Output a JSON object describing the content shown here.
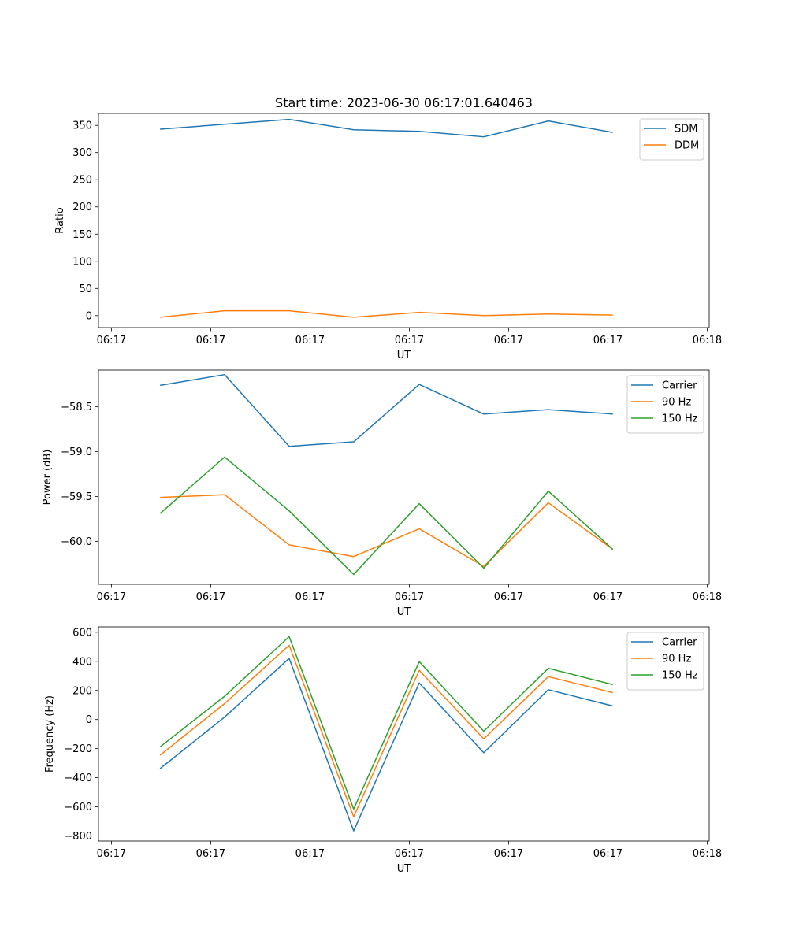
{
  "figure_title": "Start time: 2023-06-30 06:17:01.640463",
  "colors": {
    "c0": "#1f77b4",
    "c1": "#ff7f0e",
    "c2": "#2ca02c"
  },
  "chart_data": [
    {
      "type": "line",
      "title": "Start time: 2023-06-30 06:17:01.640463",
      "xlabel": "UT",
      "ylabel": "Ratio",
      "x_tick_labels": [
        "06:17",
        "06:17",
        "06:17",
        "06:17",
        "06:17",
        "06:17",
        "06:18"
      ],
      "y_ticks": [
        0,
        50,
        100,
        150,
        200,
        250,
        300,
        350
      ],
      "ylim": [
        -22,
        372
      ],
      "x_range": [
        -0.13,
        6.02
      ],
      "legend_position": "upper right",
      "grid": false,
      "series": [
        {
          "name": "SDM",
          "color": "#1f77b4",
          "x": [
            0.49,
            1.14,
            1.79,
            2.44,
            3.1,
            3.75,
            4.4,
            5.05
          ],
          "y": [
            343,
            352,
            361,
            342,
            339,
            329,
            358,
            337
          ]
        },
        {
          "name": "DDM",
          "color": "#ff7f0e",
          "x": [
            0.49,
            1.14,
            1.79,
            2.44,
            3.1,
            3.75,
            4.4,
            5.05
          ],
          "y": [
            -3,
            9,
            9,
            -3,
            6,
            0,
            3,
            1
          ]
        }
      ]
    },
    {
      "type": "line",
      "title": "",
      "xlabel": "UT",
      "ylabel": "Power (dB)",
      "x_tick_labels": [
        "06:17",
        "06:17",
        "06:17",
        "06:17",
        "06:17",
        "06:17",
        "06:18"
      ],
      "y_ticks": [
        -60.0,
        -59.5,
        -59.0,
        -58.5
      ],
      "y_tick_labels": [
        "−60.0",
        "−59.5",
        "−59.0",
        "−58.5"
      ],
      "ylim": [
        -60.48,
        -58.09
      ],
      "x_range": [
        -0.13,
        6.02
      ],
      "legend_position": "upper right",
      "grid": false,
      "series": [
        {
          "name": "Carrier",
          "color": "#1f77b4",
          "x": [
            0.49,
            1.14,
            1.79,
            2.44,
            3.1,
            3.75,
            4.4,
            5.05
          ],
          "y": [
            -58.26,
            -58.14,
            -58.94,
            -58.89,
            -58.25,
            -58.58,
            -58.53,
            -58.58
          ]
        },
        {
          "name": "90 Hz",
          "color": "#ff7f0e",
          "x": [
            0.49,
            1.14,
            1.79,
            2.44,
            3.1,
            3.75,
            4.4,
            5.05
          ],
          "y": [
            -59.51,
            -59.48,
            -60.04,
            -60.17,
            -59.86,
            -60.28,
            -59.57,
            -60.09
          ]
        },
        {
          "name": "150 Hz",
          "color": "#2ca02c",
          "x": [
            0.49,
            1.14,
            1.79,
            2.44,
            3.1,
            3.75,
            4.4,
            5.05
          ],
          "y": [
            -59.69,
            -59.06,
            -59.66,
            -60.37,
            -59.58,
            -60.3,
            -59.44,
            -60.09
          ]
        }
      ]
    },
    {
      "type": "line",
      "title": "",
      "xlabel": "UT",
      "ylabel": "Frequency (Hz)",
      "x_tick_labels": [
        "06:17",
        "06:17",
        "06:17",
        "06:17",
        "06:17",
        "06:17",
        "06:18"
      ],
      "y_ticks": [
        -800,
        -600,
        -400,
        -200,
        0,
        200,
        400,
        600
      ],
      "y_tick_labels": [
        "−800",
        "−600",
        "−400",
        "−200",
        "0",
        "200",
        "400",
        "600"
      ],
      "ylim": [
        -835,
        637
      ],
      "x_range": [
        -0.13,
        6.02
      ],
      "legend_position": "upper right",
      "grid": false,
      "series": [
        {
          "name": "Carrier",
          "color": "#1f77b4",
          "x": [
            0.49,
            1.14,
            1.79,
            2.44,
            3.1,
            3.75,
            4.4,
            5.05
          ],
          "y": [
            -337,
            17,
            420,
            -765,
            251,
            -228,
            205,
            93
          ]
        },
        {
          "name": "90 Hz",
          "color": "#ff7f0e",
          "x": [
            0.49,
            1.14,
            1.79,
            2.44,
            3.1,
            3.75,
            4.4,
            5.05
          ],
          "y": [
            -245,
            110,
            510,
            -668,
            338,
            -133,
            295,
            185
          ]
        },
        {
          "name": "150 Hz",
          "color": "#2ca02c",
          "x": [
            0.49,
            1.14,
            1.79,
            2.44,
            3.1,
            3.75,
            4.4,
            5.05
          ],
          "y": [
            -188,
            160,
            570,
            -615,
            398,
            -80,
            352,
            240
          ]
        }
      ]
    }
  ]
}
